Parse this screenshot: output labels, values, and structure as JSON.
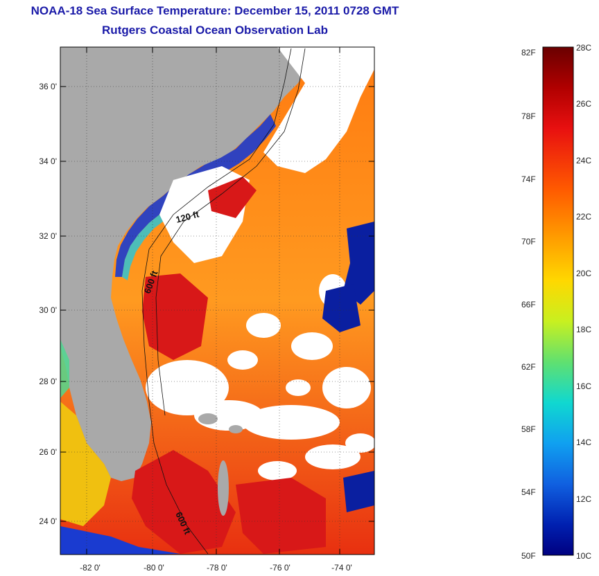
{
  "header": {
    "title": "NOAA-18 Sea Surface Temperature:  December 15, 2011 0728 GMT",
    "subtitle": "Rutgers Coastal Ocean Observation Lab"
  },
  "map": {
    "lat_ticks": [
      "36 0'",
      "34 0'",
      "32 0'",
      "30 0'",
      "28 0'",
      "26 0'",
      "24 0'"
    ],
    "lon_ticks": [
      "-82 0'",
      "-80 0'",
      "-78 0'",
      "-76 0'",
      "-74 0'"
    ],
    "isobath_labels": [
      "120 ft",
      "600 ft",
      "600 ft"
    ],
    "colors": {
      "land": "#a9a9a9",
      "cloud": "#ffffff",
      "cold": "#1a3bd0",
      "warm": "#e86a10",
      "hot": "#d01818"
    }
  },
  "colorbar": {
    "fahrenheit": [
      "82F",
      "78F",
      "74F",
      "70F",
      "66F",
      "62F",
      "58F",
      "54F",
      "50F"
    ],
    "celsius": [
      "28C",
      "26C",
      "24C",
      "22C",
      "20C",
      "18C",
      "16C",
      "14C",
      "12C",
      "10C"
    ],
    "scale_colors": [
      "#6a0000",
      "#b00000",
      "#e81010",
      "#ff5a00",
      "#ffa000",
      "#ffd800",
      "#c8f020",
      "#60e070",
      "#10d8d0",
      "#10a0f0",
      "#1060e0",
      "#0020b0",
      "#000080"
    ]
  }
}
